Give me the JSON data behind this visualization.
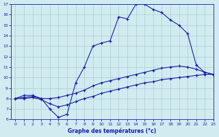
{
  "line1_x": [
    0,
    1,
    2,
    3,
    4,
    5,
    6,
    7,
    8,
    9,
    10,
    11,
    12,
    13,
    14,
    15,
    16,
    17,
    18,
    19,
    20,
    21,
    22,
    23
  ],
  "line1_y": [
    8,
    8.3,
    8.3,
    8,
    7,
    6.2,
    6.5,
    9.5,
    11,
    13,
    13.3,
    13.5,
    15.8,
    15.6,
    17,
    17,
    16.5,
    16.2,
    15.5,
    15,
    14.2,
    11.2,
    10.5,
    10.3
  ],
  "line2_x": [
    0,
    1,
    2,
    3,
    4,
    5,
    6,
    7,
    8,
    9,
    10,
    11,
    12,
    13,
    14,
    15,
    16,
    17,
    18,
    19,
    20,
    21,
    22,
    23
  ],
  "line2_y": [
    8.0,
    8.1,
    8.2,
    8.0,
    8.0,
    8.1,
    8.3,
    8.5,
    8.8,
    9.2,
    9.5,
    9.7,
    9.9,
    10.1,
    10.3,
    10.5,
    10.7,
    10.9,
    11.0,
    11.1,
    11.0,
    10.8,
    10.5,
    10.3
  ],
  "line3_x": [
    0,
    1,
    2,
    3,
    4,
    5,
    6,
    7,
    8,
    9,
    10,
    11,
    12,
    13,
    14,
    15,
    16,
    17,
    18,
    19,
    20,
    21,
    22,
    23
  ],
  "line3_y": [
    8.0,
    8.0,
    8.1,
    7.9,
    7.5,
    7.2,
    7.4,
    7.7,
    8.0,
    8.2,
    8.5,
    8.7,
    8.9,
    9.1,
    9.3,
    9.5,
    9.6,
    9.8,
    9.9,
    10.0,
    10.1,
    10.2,
    10.3,
    10.3
  ],
  "line_color": "#1a1aaa",
  "bg_color": "#d0ecf0",
  "grid_color": "#a8cdd0",
  "xlabel": "Graphe des températures (°c)",
  "xlim": [
    -0.5,
    23
  ],
  "ylim": [
    6,
    17
  ],
  "yticks": [
    6,
    7,
    8,
    9,
    10,
    11,
    12,
    13,
    14,
    15,
    16,
    17
  ],
  "xticks": [
    0,
    1,
    2,
    3,
    4,
    5,
    6,
    7,
    8,
    9,
    10,
    11,
    12,
    13,
    14,
    15,
    16,
    17,
    18,
    19,
    20,
    21,
    22,
    23
  ]
}
